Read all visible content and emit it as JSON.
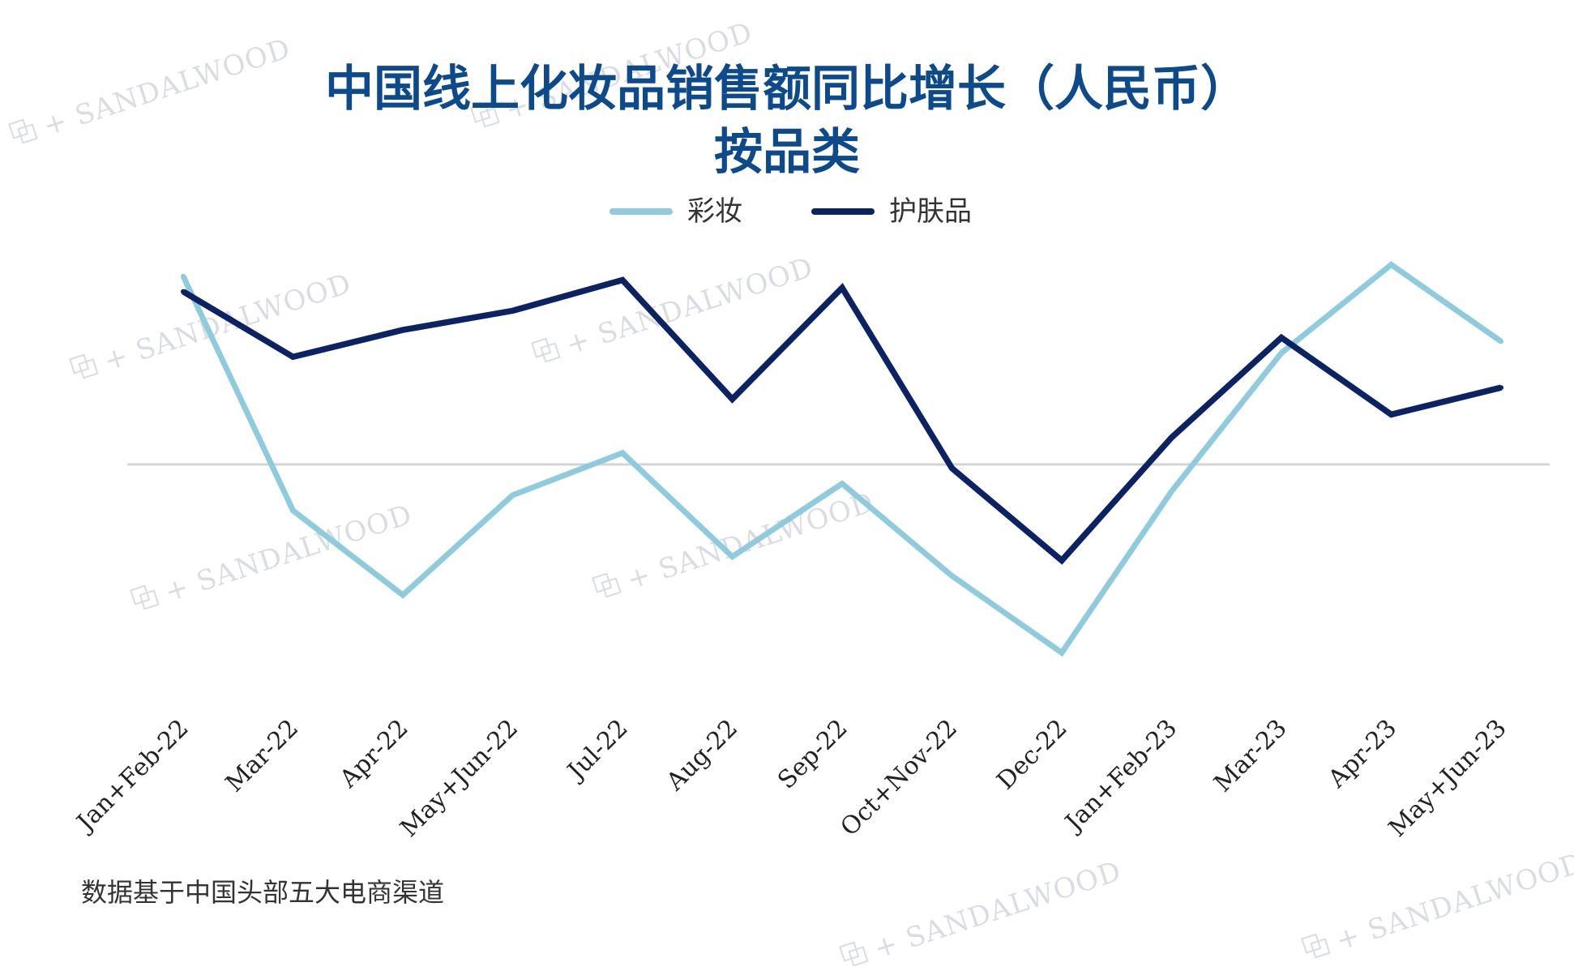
{
  "watermark": {
    "text": "SANDALWOOD",
    "color": "#d9dce3"
  },
  "chart_data": {
    "type": "line",
    "title": [
      "中国线上化妆品销售额同比增长（人民币）",
      "按品类"
    ],
    "title_color": "#0c4a8c",
    "categories": [
      "Jan+Feb-22",
      "Mar-22",
      "Apr-22",
      "May+Jun-22",
      "Jul-22",
      "Aug-22",
      "Sep-22",
      "Oct+Nov-22",
      "Dec-22",
      "Jan+Feb-23",
      "Mar-23",
      "Apr-23",
      "May+Jun-23"
    ],
    "series": [
      {
        "name": "彩妆",
        "color": "#8ecbdc",
        "values": [
          0.49,
          -0.12,
          -0.34,
          -0.08,
          0.03,
          -0.24,
          -0.05,
          -0.29,
          -0.49,
          -0.07,
          0.29,
          0.52,
          0.32
        ]
      },
      {
        "name": "护肤品",
        "color": "#0b2265",
        "values": [
          0.45,
          0.28,
          0.35,
          0.4,
          0.48,
          0.17,
          0.46,
          -0.01,
          -0.25,
          0.07,
          0.33,
          0.13,
          0.2
        ]
      }
    ],
    "ylim": [
      -0.8,
      0.8
    ],
    "y_axis_labels": false,
    "grid": false,
    "zero_line": true,
    "zero_line_color": "#d4d4d4",
    "legend": "top-center",
    "xlabel": "",
    "ylabel": ""
  },
  "footnote": "数据基于中国头部五大电商渠道",
  "footnote_color": "#333333"
}
